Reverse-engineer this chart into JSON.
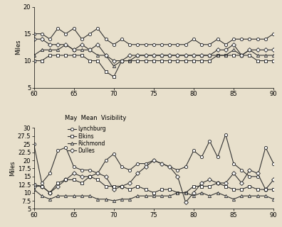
{
  "bg_color": "#e8e0cc",
  "top_chart": {
    "title": "",
    "ylabel": "Miles",
    "xlim": [
      60,
      90
    ],
    "ylim": [
      5,
      20
    ],
    "yticks": [
      5,
      10,
      15,
      20
    ],
    "xticks": [
      60,
      65,
      70,
      75,
      80,
      85,
      90
    ],
    "series": {
      "Lynchburg": {
        "marker": "o",
        "color": "#333333",
        "data_x": [
          60,
          61,
          62,
          63,
          64,
          65,
          66,
          67,
          68,
          69,
          70,
          71,
          72,
          73,
          74,
          75,
          76,
          77,
          78,
          79,
          80,
          81,
          82,
          83,
          84,
          85,
          86,
          87,
          88,
          89,
          90
        ],
        "data_y": [
          15,
          15,
          14,
          16,
          15,
          16,
          14,
          15,
          16,
          14,
          13,
          14,
          13,
          13,
          13,
          13,
          13,
          13,
          13,
          13,
          14,
          13,
          13,
          14,
          13,
          14,
          14,
          14,
          14,
          14,
          15
        ]
      },
      "Elkins": {
        "marker": "s",
        "color": "#333333",
        "data_x": [
          60,
          61,
          62,
          63,
          64,
          65,
          66,
          67,
          68,
          69,
          70,
          71,
          72,
          73,
          74,
          75,
          76,
          77,
          78,
          79,
          80,
          81,
          82,
          83,
          84,
          85,
          86,
          87,
          88,
          89,
          90
        ],
        "data_y": [
          10,
          10,
          11,
          11,
          11,
          11,
          11,
          10,
          10,
          8,
          7,
          10,
          10,
          10,
          10,
          10,
          10,
          10,
          10,
          10,
          10,
          10,
          10,
          11,
          11,
          11,
          11,
          11,
          10,
          10,
          10
        ]
      },
      "Richmond": {
        "marker": "^",
        "color": "#333333",
        "data_x": [
          60,
          61,
          62,
          63,
          64,
          65,
          66,
          67,
          68,
          69,
          70,
          71,
          72,
          73,
          74,
          75,
          76,
          77,
          78,
          79,
          80,
          81,
          82,
          83,
          84,
          85,
          86,
          87,
          88,
          89,
          90
        ],
        "data_y": [
          11,
          12,
          12,
          12,
          13,
          12,
          12,
          12,
          11,
          11,
          9,
          10,
          10,
          11,
          11,
          11,
          11,
          11,
          11,
          11,
          11,
          11,
          11,
          11,
          11,
          12,
          11,
          12,
          11,
          11,
          11
        ]
      },
      "Dulles": {
        "marker": "D",
        "color": "#333333",
        "data_x": [
          60,
          61,
          62,
          63,
          64,
          65,
          66,
          67,
          68,
          69,
          70,
          71,
          72,
          73,
          74,
          75,
          76,
          77,
          78,
          79,
          80,
          81,
          82,
          83,
          84,
          85,
          86,
          87,
          88,
          89,
          90
        ],
        "data_y": [
          14,
          14,
          13,
          13,
          13,
          12,
          13,
          12,
          13,
          11,
          10,
          10,
          11,
          11,
          11,
          11,
          11,
          11,
          11,
          11,
          11,
          11,
          11,
          12,
          12,
          13,
          11,
          12,
          12,
          12,
          12
        ]
      }
    }
  },
  "bottom_chart": {
    "title": "May  Mean  Visibility",
    "ylabel": "Miles",
    "xlim": [
      60,
      90
    ],
    "ylim": [
      5,
      30
    ],
    "yticks": [
      5,
      7.5,
      10,
      12.5,
      15,
      17.5,
      20,
      22.5,
      25,
      27.5,
      30
    ],
    "xticks": [
      60,
      65,
      70,
      75,
      80,
      85,
      90
    ],
    "series": {
      "Lynchburg": {
        "marker": "o",
        "color": "#333333",
        "data_x": [
          60,
          61,
          62,
          63,
          64,
          65,
          66,
          67,
          68,
          69,
          70,
          71,
          72,
          73,
          74,
          75,
          76,
          77,
          78,
          79,
          80,
          81,
          82,
          83,
          84,
          85,
          86,
          87,
          88,
          89,
          90
        ],
        "data_y": [
          25,
          13,
          16,
          23,
          24,
          18,
          17,
          17,
          16,
          20,
          22,
          18,
          17,
          19,
          19,
          20,
          19,
          18,
          17,
          18,
          23,
          21,
          26,
          21,
          28,
          19,
          17,
          15,
          15,
          24,
          19
        ]
      },
      "Elkins": {
        "marker": "s",
        "color": "#333333",
        "data_x": [
          60,
          61,
          62,
          63,
          64,
          65,
          66,
          67,
          68,
          69,
          70,
          71,
          72,
          73,
          74,
          75,
          76,
          77,
          78,
          79,
          80,
          81,
          82,
          83,
          84,
          85,
          86,
          87,
          88,
          89,
          90
        ],
        "data_y": [
          12.5,
          12,
          10,
          13,
          14,
          14,
          13,
          15,
          14,
          12,
          12,
          12,
          11,
          12,
          11,
          10,
          11,
          11,
          10,
          10,
          12,
          12,
          12,
          13,
          12,
          11,
          11,
          12,
          11,
          11,
          11
        ]
      },
      "Richmond": {
        "marker": "^",
        "color": "#333333",
        "data_x": [
          60,
          61,
          62,
          63,
          64,
          65,
          66,
          67,
          68,
          69,
          70,
          71,
          72,
          73,
          74,
          75,
          76,
          77,
          78,
          79,
          80,
          81,
          82,
          83,
          84,
          85,
          86,
          87,
          88,
          89,
          90
        ],
        "data_y": [
          11,
          9,
          8,
          9,
          9,
          9,
          9,
          9,
          8,
          8,
          7.5,
          8,
          8,
          9,
          9,
          9,
          9,
          9,
          10,
          10,
          9,
          10,
          9,
          10,
          9,
          8,
          9,
          9,
          9,
          9,
          8
        ]
      },
      "Dulles": {
        "marker": "D",
        "color": "#333333",
        "data_x": [
          60,
          61,
          62,
          63,
          64,
          65,
          66,
          67,
          68,
          69,
          70,
          71,
          72,
          73,
          74,
          75,
          76,
          77,
          78,
          79,
          80,
          81,
          82,
          83,
          84,
          85,
          86,
          87,
          88,
          89,
          90
        ],
        "data_y": [
          12,
          12,
          10,
          12,
          14,
          16,
          15,
          15,
          16,
          15,
          11,
          12,
          13,
          16,
          18,
          20,
          19,
          18,
          15,
          7,
          10,
          13,
          14,
          13,
          13,
          16,
          13,
          17,
          16,
          11,
          14
        ]
      }
    },
    "legend_order": [
      "Lynchburg",
      "Elkins",
      "Richmond",
      "Dulles"
    ]
  }
}
